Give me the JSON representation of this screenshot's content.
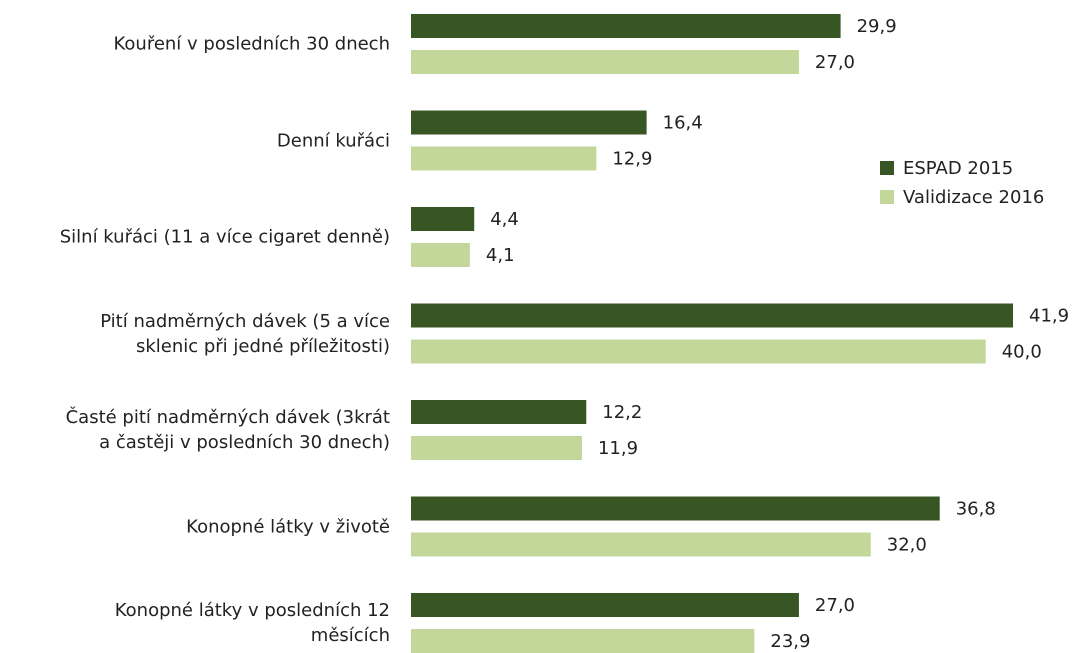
{
  "chart_data": {
    "type": "bar",
    "orientation": "horizontal",
    "categories": [
      "Kouření v posledních 30 dnech",
      "Denní kuřáci",
      "Silní kuřáci (11 a více cigaret denně)",
      "Pití nadměrných dávek (5 a více\nsklenic při jedné příležitosti)",
      "Časté pití nadměrných dávek (3krát\na častěji v posledních 30 dnech)",
      "Konopné látky v životě",
      "Konopné látky v posledních 12\nměsících"
    ],
    "series": [
      {
        "name": "ESPAD 2015",
        "color": "#375623",
        "values": [
          29.9,
          16.4,
          4.4,
          41.9,
          12.2,
          36.8,
          27.0
        ],
        "value_labels": [
          "29,9",
          "16,4",
          "4,4",
          "41,9",
          "12,2",
          "36,8",
          "27,0"
        ]
      },
      {
        "name": "Validizace 2016",
        "color": "#c4d79b",
        "values": [
          27.0,
          12.9,
          4.1,
          40.0,
          11.9,
          32.0,
          23.9
        ],
        "value_labels": [
          "27,0",
          "12,9",
          "4,1",
          "40,0",
          "11,9",
          "32,0",
          "23,9"
        ]
      }
    ],
    "legend": "right"
  }
}
